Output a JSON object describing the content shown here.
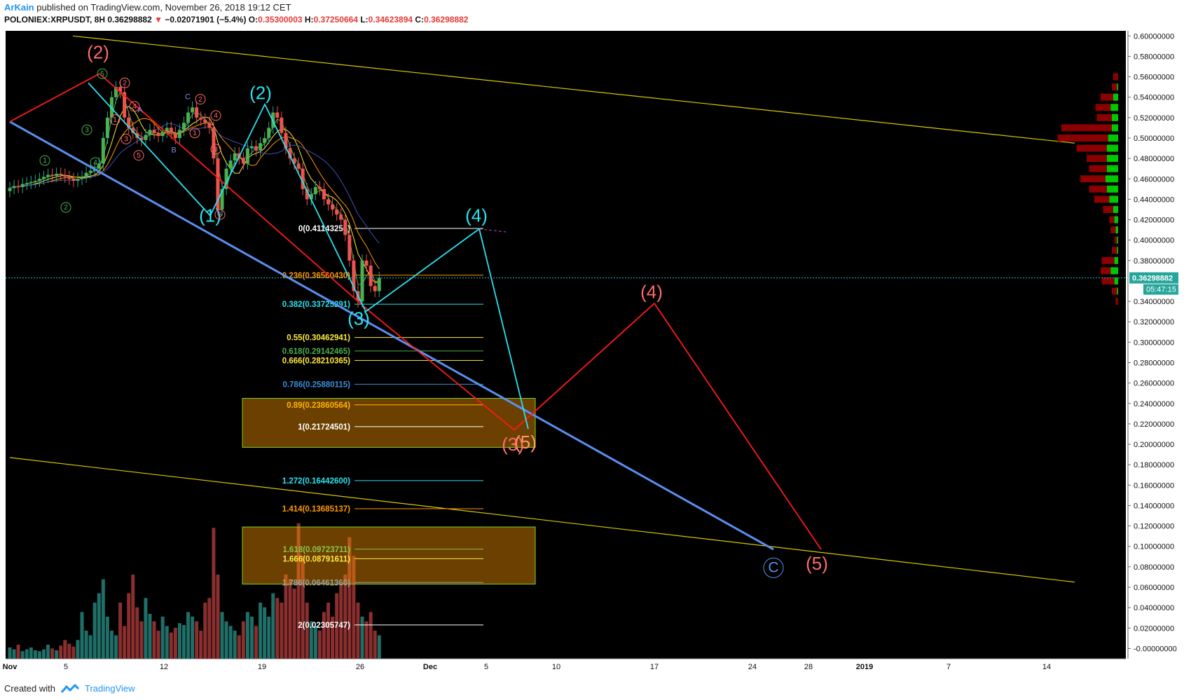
{
  "header": {
    "author": "ArKain",
    "published": "published on TradingView.com, November 26, 2018 19:12 CET",
    "symbol": "POLONIEX:XRPUSDT, 8H",
    "last": "0.36298882",
    "down_arrow": "▼",
    "change": "−0.02071901 (−5.4%)",
    "o_label": "O:",
    "o_value": "0.35300003",
    "h_label": "H:",
    "h_value": "0.37250664",
    "l_label": "L:",
    "l_value": "0.34623894",
    "c_label": "C:",
    "c_value": "0.36298882"
  },
  "footer": {
    "created": "Created with",
    "brand": "TradingView"
  },
  "colors": {
    "background": "#000000",
    "up": "#26a69a",
    "down": "#ef5350",
    "wave_red": "#ff1a1a",
    "wave_cyan": "#29e3f0",
    "trend_blue": "#5b8ff0",
    "channel_yellow": "#d8c800"
  },
  "chart_data": {
    "type": "candlestick",
    "title": "XRPUSDT 8H",
    "ylim": [
      -0.01,
      0.605
    ],
    "price_ticks": [
      "0.60000000",
      "0.58000000",
      "0.56000000",
      "0.54000000",
      "0.52000000",
      "0.50000000",
      "0.48000000",
      "0.46000000",
      "0.44000000",
      "0.42000000",
      "0.40000000",
      "0.38000000",
      "0.34000000",
      "0.32000000",
      "0.30000000",
      "0.28000000",
      "0.26000000",
      "0.24000000",
      "0.22000000",
      "0.20000000",
      "0.18000000",
      "0.16000000",
      "0.14000000",
      "0.12000000",
      "0.10000000",
      "0.08000000",
      "0.06000000",
      "0.04000000",
      "0.02000000",
      "-0.00000000"
    ],
    "price_tick_values": [
      0.6,
      0.58,
      0.56,
      0.54,
      0.52,
      0.5,
      0.48,
      0.46,
      0.44,
      0.42,
      0.4,
      0.38,
      0.34,
      0.32,
      0.3,
      0.28,
      0.26,
      0.24,
      0.22,
      0.2,
      0.18,
      0.16,
      0.14,
      0.12,
      0.1,
      0.08,
      0.06,
      0.04,
      0.02,
      0.0
    ],
    "last_price_label": "0.36298882",
    "last_price": 0.36298882,
    "countdown_label": "05:47:15",
    "time_ticks": [
      {
        "label": "Nov",
        "d": 0
      },
      {
        "label": "5",
        "d": 4
      },
      {
        "label": "12",
        "d": 11
      },
      {
        "label": "19",
        "d": 18
      },
      {
        "label": "26",
        "d": 25
      },
      {
        "label": "Dec",
        "d": 30
      },
      {
        "label": "5",
        "d": 34
      },
      {
        "label": "10",
        "d": 39
      },
      {
        "label": "17",
        "d": 46
      },
      {
        "label": "24",
        "d": 53
      },
      {
        "label": "28",
        "d": 57
      },
      {
        "label": "2019",
        "d": 61
      },
      {
        "label": "7",
        "d": 67
      },
      {
        "label": "14",
        "d": 74
      }
    ],
    "candles_close": [
      0.451,
      0.453,
      0.452,
      0.455,
      0.456,
      0.457,
      0.458,
      0.46,
      0.462,
      0.464,
      0.463,
      0.465,
      0.464,
      0.462,
      0.46,
      0.458,
      0.46,
      0.462,
      0.466,
      0.468,
      0.47,
      0.475,
      0.5,
      0.52,
      0.54,
      0.55,
      0.545,
      0.52,
      0.51,
      0.505,
      0.5,
      0.498,
      0.503,
      0.508,
      0.505,
      0.502,
      0.506,
      0.51,
      0.505,
      0.5,
      0.508,
      0.515,
      0.525,
      0.53,
      0.52,
      0.518,
      0.515,
      0.51,
      0.48,
      0.43,
      0.45,
      0.47,
      0.478,
      0.485,
      0.48,
      0.475,
      0.49,
      0.492,
      0.488,
      0.495,
      0.5,
      0.51,
      0.525,
      0.52,
      0.505,
      0.49,
      0.48,
      0.475,
      0.47,
      0.45,
      0.44,
      0.445,
      0.452,
      0.45,
      0.44,
      0.435,
      0.43,
      0.425,
      0.42,
      0.405,
      0.38,
      0.35,
      0.34,
      0.38,
      0.375,
      0.355,
      0.35,
      0.363
    ],
    "volume": [
      0.012,
      0.01,
      0.015,
      0.008,
      0.01,
      0.012,
      0.009,
      0.008,
      0.01,
      0.015,
      0.011,
      0.009,
      0.014,
      0.02,
      0.016,
      0.013,
      0.02,
      0.05,
      0.03,
      0.025,
      0.06,
      0.07,
      0.085,
      0.045,
      0.03,
      0.025,
      0.06,
      0.035,
      0.07,
      0.09,
      0.055,
      0.04,
      0.065,
      0.048,
      0.04,
      0.03,
      0.045,
      0.035,
      0.028,
      0.033,
      0.038,
      0.036,
      0.05,
      0.045,
      0.04,
      0.03,
      0.06,
      0.065,
      0.14,
      0.09,
      0.05,
      0.04,
      0.035,
      0.03,
      0.025,
      0.04,
      0.05,
      0.045,
      0.035,
      0.06,
      0.055,
      0.045,
      0.07,
      0.065,
      0.06,
      0.09,
      0.085,
      0.075,
      0.145,
      0.11,
      0.06,
      0.04,
      0.035,
      0.03,
      0.05,
      0.06,
      0.045,
      0.07,
      0.08,
      0.09,
      0.13,
      0.11,
      0.06,
      0.045,
      0.04,
      0.05,
      0.03,
      0.025
    ],
    "fib_levels": [
      {
        "label": "0(0.41143256)",
        "value": 0.41143256,
        "color": "#ffffff"
      },
      {
        "label": "0.236(0.36560430)",
        "value": 0.3656043,
        "color": "#ff9800"
      },
      {
        "label": "0.382(0.33725291)",
        "value": 0.33725291,
        "color": "#29e3f0"
      },
      {
        "label": "0.55(0.30462941)",
        "value": 0.30462941,
        "color": "#ffeb3b"
      },
      {
        "label": "0.618(0.29142465)",
        "value": 0.29142465,
        "color": "#4caf50"
      },
      {
        "label": "0.666(0.28210365)",
        "value": 0.28210365,
        "color": "#ffeb3b"
      },
      {
        "label": "0.786(0.25880115)",
        "value": 0.25880115,
        "color": "#3b8fd8"
      },
      {
        "label": "0.89(0.23860564)",
        "value": 0.23860564,
        "color": "#ffb300"
      },
      {
        "label": "1(0.21724501)",
        "value": 0.21724501,
        "color": "#ffffff"
      },
      {
        "label": "1.272(0.16442600)",
        "value": 0.164426,
        "color": "#29e3f0"
      },
      {
        "label": "1.414(0.13685137)",
        "value": 0.13685137,
        "color": "#ff9800"
      },
      {
        "label": "1.618(0.09723711)",
        "value": 0.09723711,
        "color": "#8bc34a"
      },
      {
        "label": "1.666(0.08791611)",
        "value": 0.08791611,
        "color": "#ffeb3b"
      },
      {
        "label": "1.786(0.06461360)",
        "value": 0.0646136,
        "color": "#9e9e9e"
      },
      {
        "label": "2(0.02305747)",
        "value": 0.02305747,
        "color": "#ffffff"
      }
    ],
    "target_zones": [
      {
        "y_top": 0.245,
        "y_bottom": 0.197
      },
      {
        "y_top": 0.119,
        "y_bottom": 0.063
      }
    ],
    "wave_labels": [
      {
        "text": "(1)",
        "d": 14.3,
        "y": 0.418,
        "color": "#29e3f0",
        "size": 26
      },
      {
        "text": "(2)",
        "d": 17.9,
        "y": 0.538,
        "color": "#29e3f0",
        "size": 26
      },
      {
        "text": "(3)",
        "d": 24.9,
        "y": 0.317,
        "color": "#29e3f0",
        "size": 26
      },
      {
        "text": "(4)",
        "d": 33.3,
        "y": 0.418,
        "color": "#29e3f0",
        "size": 26
      },
      {
        "text": "(5)",
        "d": 36.8,
        "y": 0.196,
        "color": "#ff9966",
        "size": 26
      },
      {
        "text": "(3)",
        "d": 35.9,
        "y": 0.194,
        "color": "#ff6b6b",
        "size": 26
      },
      {
        "text": "(2)",
        "d": 6.3,
        "y": 0.578,
        "color": "#ff6b6b",
        "size": 26
      },
      {
        "text": "(4)",
        "d": 45.8,
        "y": 0.343,
        "color": "#ff6b6b",
        "size": 26
      },
      {
        "text": "(5)",
        "d": 57.6,
        "y": 0.077,
        "color": "#ff6b6b",
        "size": 26
      }
    ],
    "circle_labels": [
      {
        "text": "C",
        "d": 54.5,
        "y": 0.079,
        "color": "#5b8ff0",
        "r": 14
      },
      {
        "text": "1",
        "d": 2.5,
        "y": 0.478,
        "color": "#4caf50",
        "r": 7
      },
      {
        "text": "2",
        "d": 4.0,
        "y": 0.432,
        "color": "#4caf50",
        "r": 7
      },
      {
        "text": "3",
        "d": 5.5,
        "y": 0.508,
        "color": "#4caf50",
        "r": 7
      },
      {
        "text": "4",
        "d": 6.1,
        "y": 0.476,
        "color": "#4caf50",
        "r": 7
      },
      {
        "text": "5",
        "d": 6.6,
        "y": 0.563,
        "color": "#4caf50",
        "r": 7
      },
      {
        "text": "2",
        "d": 8.2,
        "y": 0.554,
        "color": "#ff6b6b",
        "r": 7
      },
      {
        "text": "1",
        "d": 7.5,
        "y": 0.518,
        "color": "#ff6b6b",
        "r": 7
      },
      {
        "text": "4",
        "d": 8.9,
        "y": 0.531,
        "color": "#ff6b6b",
        "r": 7
      },
      {
        "text": "3",
        "d": 8.3,
        "y": 0.499,
        "color": "#ff6b6b",
        "r": 7
      },
      {
        "text": "5",
        "d": 9.2,
        "y": 0.483,
        "color": "#ff6b6b",
        "r": 7
      },
      {
        "text": "2",
        "d": 13.6,
        "y": 0.538,
        "color": "#ff6b6b",
        "r": 7
      },
      {
        "text": "1",
        "d": 13.2,
        "y": 0.505,
        "color": "#ff6b6b",
        "r": 7
      },
      {
        "text": "4",
        "d": 14.7,
        "y": 0.522,
        "color": "#ff6b6b",
        "r": 7
      },
      {
        "text": "3",
        "d": 14.7,
        "y": 0.489,
        "color": "#ff6b6b",
        "r": 7
      },
      {
        "text": "5",
        "d": 15.0,
        "y": 0.425,
        "color": "#ff6b6b",
        "r": 7
      }
    ],
    "abc_labels": [
      {
        "text": "A",
        "d": 9.3,
        "y": 0.525,
        "color": "#7e8ed8"
      },
      {
        "text": "B",
        "d": 11.7,
        "y": 0.486,
        "color": "#7e8ed8"
      },
      {
        "text": "C",
        "d": 12.7,
        "y": 0.538,
        "color": "#7e8ed8"
      }
    ],
    "red_path": [
      [
        0,
        0.516
      ],
      [
        6.4,
        0.563
      ],
      [
        25.6,
        0.331
      ],
      [
        36.0,
        0.214
      ],
      [
        46.0,
        0.338
      ],
      [
        57.9,
        0.097
      ]
    ],
    "cyan_path": [
      [
        5.6,
        0.554
      ],
      [
        14.3,
        0.424
      ],
      [
        18.2,
        0.533
      ],
      [
        25.4,
        0.33
      ],
      [
        33.5,
        0.411
      ],
      [
        37.0,
        0.215
      ]
    ],
    "blue_trend": [
      [
        0,
        0.516
      ],
      [
        54.5,
        0.097
      ]
    ],
    "dashed_proj": [
      [
        33.5,
        0.411
      ],
      [
        35.5,
        0.41
      ]
    ],
    "yellow_channel": [
      [
        [
          4.5,
          0.6
        ],
        [
          76.0,
          0.495
        ]
      ],
      [
        [
          0,
          0.187
        ],
        [
          76.0,
          0.065
        ]
      ]
    ],
    "volume_profile": [
      {
        "y": 0.56,
        "green": 0,
        "red": 0.1
      },
      {
        "y": 0.55,
        "green": 0.05,
        "red": 0.1
      },
      {
        "y": 0.54,
        "green": 0.2,
        "red": 0.25
      },
      {
        "y": 0.53,
        "green": 0.3,
        "red": 0.3
      },
      {
        "y": 0.52,
        "green": 0.25,
        "red": 0.3
      },
      {
        "y": 0.51,
        "green": 0.25,
        "red": 1.0
      },
      {
        "y": 0.5,
        "green": 0.4,
        "red": 1.0
      },
      {
        "y": 0.49,
        "green": 0.45,
        "red": 0.6
      },
      {
        "y": 0.48,
        "green": 0.45,
        "red": 0.4
      },
      {
        "y": 0.47,
        "green": 0.45,
        "red": 0.35
      },
      {
        "y": 0.46,
        "green": 0.5,
        "red": 0.5
      },
      {
        "y": 0.45,
        "green": 0.45,
        "red": 0.35
      },
      {
        "y": 0.44,
        "green": 0.35,
        "red": 0.3
      },
      {
        "y": 0.43,
        "green": 0.2,
        "red": 0.2
      },
      {
        "y": 0.42,
        "green": 0.15,
        "red": 0.1
      },
      {
        "y": 0.41,
        "green": 0.1,
        "red": 0.1
      },
      {
        "y": 0.4,
        "green": 0.05,
        "red": 0.05
      },
      {
        "y": 0.39,
        "green": 0.05,
        "red": 0.1
      },
      {
        "y": 0.38,
        "green": 0.15,
        "red": 0.25
      },
      {
        "y": 0.37,
        "green": 0.3,
        "red": 0.2
      },
      {
        "y": 0.36,
        "green": 0.15,
        "red": 0.25
      },
      {
        "y": 0.35,
        "green": 0.05,
        "red": 0.1
      },
      {
        "y": 0.34,
        "green": 0,
        "red": 0.05
      }
    ]
  }
}
